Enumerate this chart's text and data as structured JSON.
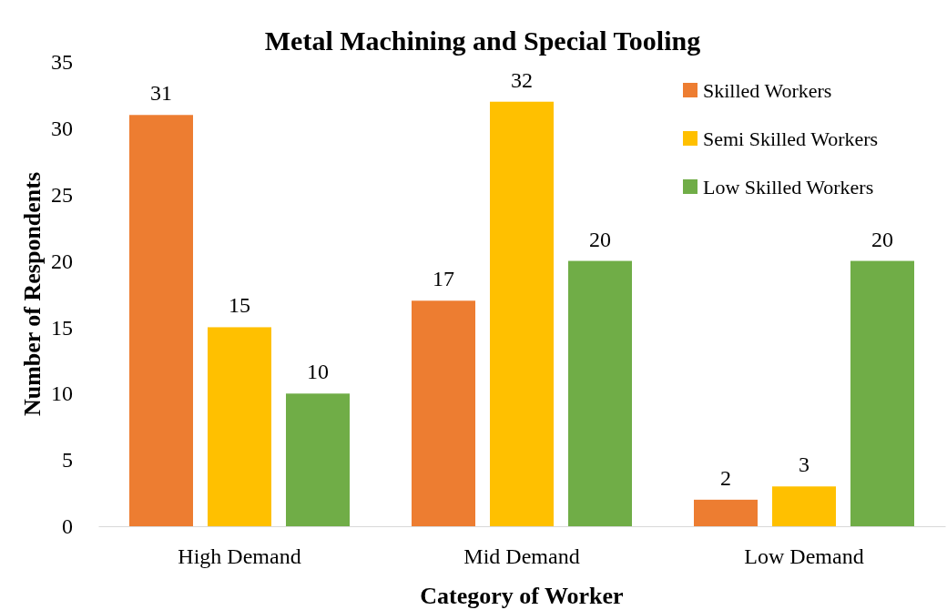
{
  "chart_data": {
    "type": "bar",
    "title": "Metal Machining and Special Tooling",
    "xlabel": "Category of Worker",
    "ylabel": "Number of Respondents",
    "categories": [
      "High Demand",
      "Mid Demand",
      "Low Demand"
    ],
    "series": [
      {
        "name": "Skilled Workers",
        "color": "#ed7d31",
        "values": [
          31,
          17,
          2
        ]
      },
      {
        "name": "Semi Skilled Workers",
        "color": "#ffc000",
        "values": [
          15,
          32,
          3
        ]
      },
      {
        "name": "Low Skilled Workers",
        "color": "#70ad47",
        "values": [
          10,
          20,
          20
        ]
      }
    ],
    "ylim": [
      0,
      35
    ],
    "yticks": [
      0,
      5,
      10,
      15,
      20,
      25,
      30,
      35
    ],
    "grid": false,
    "legend": "top right",
    "data_labels": true
  }
}
